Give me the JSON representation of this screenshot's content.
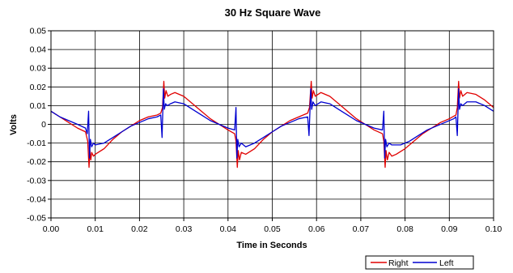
{
  "chart_data": {
    "type": "line",
    "title": "30 Hz Square Wave",
    "xlabel": "Time in Seconds",
    "ylabel": "Volts",
    "xlim": [
      0,
      0.1
    ],
    "ylim": [
      -0.05,
      0.05
    ],
    "x_ticks": [
      "0.00",
      "0.01",
      "0.02",
      "0.03",
      "0.04",
      "0.05",
      "0.06",
      "0.07",
      "0.08",
      "0.09",
      "0.10"
    ],
    "y_ticks": [
      "0.05",
      "0.04",
      "0.03",
      "0.02",
      "0.01",
      "0",
      "-0.01",
      "-0.02",
      "-0.03",
      "-0.04",
      "-0.05"
    ],
    "grid": true,
    "legend_position": "bottom-right",
    "series": [
      {
        "name": "Right",
        "color": "#e00000",
        "points": [
          [
            0.0,
            0.007
          ],
          [
            0.002,
            0.004
          ],
          [
            0.004,
            0.001
          ],
          [
            0.006,
            -0.002
          ],
          [
            0.0078,
            -0.004
          ],
          [
            0.0083,
            -0.009
          ],
          [
            0.0086,
            -0.023
          ],
          [
            0.0088,
            -0.014
          ],
          [
            0.009,
            -0.019
          ],
          [
            0.0092,
            -0.015
          ],
          [
            0.0096,
            -0.017
          ],
          [
            0.01,
            -0.016
          ],
          [
            0.012,
            -0.013
          ],
          [
            0.014,
            -0.008
          ],
          [
            0.016,
            -0.004
          ],
          [
            0.018,
            -0.001
          ],
          [
            0.02,
            0.002
          ],
          [
            0.022,
            0.004
          ],
          [
            0.024,
            0.005
          ],
          [
            0.0248,
            0.006
          ],
          [
            0.0252,
            0.009
          ],
          [
            0.0255,
            0.023
          ],
          [
            0.0257,
            0.014
          ],
          [
            0.026,
            0.018
          ],
          [
            0.0264,
            0.015
          ],
          [
            0.027,
            0.016
          ],
          [
            0.028,
            0.017
          ],
          [
            0.03,
            0.015
          ],
          [
            0.032,
            0.011
          ],
          [
            0.034,
            0.007
          ],
          [
            0.036,
            0.003
          ],
          [
            0.038,
            0.0
          ],
          [
            0.04,
            -0.003
          ],
          [
            0.0415,
            -0.005
          ],
          [
            0.0418,
            -0.009
          ],
          [
            0.0421,
            -0.023
          ],
          [
            0.0423,
            -0.014
          ],
          [
            0.0426,
            -0.019
          ],
          [
            0.043,
            -0.015
          ],
          [
            0.044,
            -0.016
          ],
          [
            0.046,
            -0.013
          ],
          [
            0.048,
            -0.008
          ],
          [
            0.05,
            -0.004
          ],
          [
            0.052,
            -0.001
          ],
          [
            0.054,
            0.002
          ],
          [
            0.056,
            0.004
          ],
          [
            0.058,
            0.006
          ],
          [
            0.0584,
            0.009
          ],
          [
            0.0588,
            0.023
          ],
          [
            0.059,
            0.014
          ],
          [
            0.0593,
            0.018
          ],
          [
            0.0597,
            0.015
          ],
          [
            0.061,
            0.017
          ],
          [
            0.063,
            0.015
          ],
          [
            0.065,
            0.011
          ],
          [
            0.067,
            0.007
          ],
          [
            0.069,
            0.003
          ],
          [
            0.071,
            0.0
          ],
          [
            0.073,
            -0.003
          ],
          [
            0.0749,
            -0.005
          ],
          [
            0.0752,
            -0.009
          ],
          [
            0.0755,
            -0.023
          ],
          [
            0.0757,
            -0.014
          ],
          [
            0.076,
            -0.019
          ],
          [
            0.0764,
            -0.015
          ],
          [
            0.077,
            -0.017
          ],
          [
            0.078,
            -0.016
          ],
          [
            0.08,
            -0.013
          ],
          [
            0.082,
            -0.009
          ],
          [
            0.084,
            -0.005
          ],
          [
            0.086,
            -0.002
          ],
          [
            0.088,
            0.001
          ],
          [
            0.09,
            0.003
          ],
          [
            0.0915,
            0.005
          ],
          [
            0.0918,
            0.009
          ],
          [
            0.0921,
            0.023
          ],
          [
            0.0923,
            0.014
          ],
          [
            0.0926,
            0.018
          ],
          [
            0.093,
            0.015
          ],
          [
            0.094,
            0.017
          ],
          [
            0.096,
            0.016
          ],
          [
            0.098,
            0.013
          ],
          [
            0.1,
            0.009
          ]
        ]
      },
      {
        "name": "Left",
        "color": "#0000d0",
        "points": [
          [
            0.0,
            0.007
          ],
          [
            0.002,
            0.004
          ],
          [
            0.004,
            0.002
          ],
          [
            0.006,
            0.0
          ],
          [
            0.0078,
            -0.002
          ],
          [
            0.0082,
            -0.005
          ],
          [
            0.0085,
            0.007
          ],
          [
            0.0087,
            -0.018
          ],
          [
            0.0089,
            -0.008
          ],
          [
            0.0092,
            -0.012
          ],
          [
            0.0096,
            -0.01
          ],
          [
            0.01,
            -0.011
          ],
          [
            0.012,
            -0.01
          ],
          [
            0.014,
            -0.007
          ],
          [
            0.016,
            -0.004
          ],
          [
            0.018,
            -0.001
          ],
          [
            0.02,
            0.001
          ],
          [
            0.022,
            0.003
          ],
          [
            0.024,
            0.004
          ],
          [
            0.0248,
            0.005
          ],
          [
            0.0251,
            -0.007
          ],
          [
            0.0254,
            0.019
          ],
          [
            0.0256,
            0.008
          ],
          [
            0.0259,
            0.011
          ],
          [
            0.0263,
            0.01
          ],
          [
            0.027,
            0.011
          ],
          [
            0.028,
            0.012
          ],
          [
            0.03,
            0.011
          ],
          [
            0.032,
            0.008
          ],
          [
            0.034,
            0.005
          ],
          [
            0.036,
            0.002
          ],
          [
            0.038,
            0.0
          ],
          [
            0.04,
            -0.002
          ],
          [
            0.0415,
            -0.003
          ],
          [
            0.0418,
            0.009
          ],
          [
            0.042,
            -0.018
          ],
          [
            0.0422,
            -0.008
          ],
          [
            0.0425,
            -0.012
          ],
          [
            0.043,
            -0.01
          ],
          [
            0.044,
            -0.012
          ],
          [
            0.046,
            -0.01
          ],
          [
            0.048,
            -0.007
          ],
          [
            0.05,
            -0.004
          ],
          [
            0.052,
            -0.001
          ],
          [
            0.054,
            0.001
          ],
          [
            0.056,
            0.003
          ],
          [
            0.058,
            0.004
          ],
          [
            0.0583,
            -0.006
          ],
          [
            0.0587,
            0.019
          ],
          [
            0.0589,
            0.008
          ],
          [
            0.0592,
            0.012
          ],
          [
            0.0597,
            0.01
          ],
          [
            0.061,
            0.012
          ],
          [
            0.063,
            0.011
          ],
          [
            0.065,
            0.008
          ],
          [
            0.067,
            0.005
          ],
          [
            0.069,
            0.002
          ],
          [
            0.071,
            0.0
          ],
          [
            0.073,
            -0.002
          ],
          [
            0.0749,
            -0.003
          ],
          [
            0.0752,
            0.007
          ],
          [
            0.0754,
            -0.018
          ],
          [
            0.0756,
            -0.008
          ],
          [
            0.0759,
            -0.012
          ],
          [
            0.0764,
            -0.01
          ],
          [
            0.077,
            -0.011
          ],
          [
            0.079,
            -0.011
          ],
          [
            0.081,
            -0.009
          ],
          [
            0.083,
            -0.006
          ],
          [
            0.085,
            -0.003
          ],
          [
            0.087,
            -0.001
          ],
          [
            0.089,
            0.001
          ],
          [
            0.091,
            0.003
          ],
          [
            0.0915,
            0.004
          ],
          [
            0.0918,
            -0.006
          ],
          [
            0.0921,
            0.019
          ],
          [
            0.0923,
            0.008
          ],
          [
            0.0926,
            0.011
          ],
          [
            0.093,
            0.01
          ],
          [
            0.094,
            0.012
          ],
          [
            0.096,
            0.012
          ],
          [
            0.098,
            0.01
          ],
          [
            0.1,
            0.007
          ]
        ]
      }
    ]
  }
}
